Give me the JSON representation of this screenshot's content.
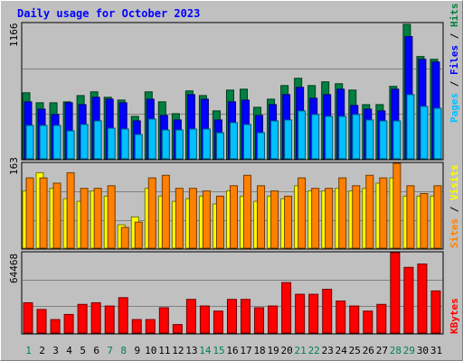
{
  "chart_data": [
    {
      "type": "bar",
      "title": "Daily usage for October 2023",
      "categories": [
        "1",
        "2",
        "3",
        "4",
        "5",
        "6",
        "7",
        "8",
        "9",
        "10",
        "11",
        "12",
        "13",
        "14",
        "15",
        "16",
        "17",
        "18",
        "19",
        "20",
        "21",
        "22",
        "23",
        "24",
        "25",
        "26",
        "27",
        "28",
        "29",
        "30",
        "31"
      ],
      "weekend_days": [
        "1",
        "7",
        "8",
        "14",
        "15",
        "21",
        "22",
        "28",
        "29"
      ],
      "ylim": [
        0,
        1166
      ],
      "max_label": "1166",
      "series": [
        {
          "name": "Pages",
          "color": "#00c0ff",
          "values": [
            288,
            288,
            288,
            241,
            296,
            327,
            264,
            257,
            210,
            343,
            249,
            249,
            257,
            257,
            225,
            312,
            296,
            225,
            327,
            335,
            413,
            382,
            366,
            366,
            382,
            335,
            327,
            327,
            553,
            452,
            436
          ]
        },
        {
          "name": "Files",
          "color": "#0000ff",
          "values": [
            491,
            428,
            382,
            483,
            467,
            530,
            514,
            483,
            327,
            514,
            374,
            335,
            553,
            514,
            335,
            491,
            506,
            374,
            467,
            553,
            616,
            522,
            553,
            600,
            460,
            428,
            413,
            600,
            1053,
            857,
            834
          ]
        },
        {
          "name": "Hits",
          "color": "#008040",
          "values": [
            569,
            483,
            483,
            491,
            545,
            577,
            530,
            506,
            366,
            577,
            491,
            389,
            585,
            545,
            413,
            592,
            600,
            444,
            514,
            631,
            694,
            631,
            663,
            647,
            592,
            467,
            467,
            624,
            1158,
            881,
            857
          ]
        }
      ]
    },
    {
      "type": "bar",
      "ylim": [
        0,
        163
      ],
      "max_label": "163",
      "series": [
        {
          "name": "Visits",
          "color": "#ffff00",
          "values": [
            110,
            145,
            115,
            95,
            90,
            110,
            100,
            45,
            60,
            115,
            100,
            90,
            95,
            100,
            85,
            110,
            100,
            90,
            100,
            95,
            120,
            110,
            110,
            115,
            110,
            115,
            125,
            135,
            100,
            100,
            100
          ]
        },
        {
          "name": "Sites",
          "color": "#ff8000",
          "values": [
            135,
            135,
            125,
            145,
            115,
            115,
            120,
            40,
            50,
            135,
            140,
            115,
            115,
            110,
            100,
            120,
            140,
            120,
            110,
            100,
            135,
            115,
            115,
            135,
            120,
            140,
            135,
            163,
            120,
            105,
            120
          ]
        }
      ]
    },
    {
      "type": "bar",
      "ylim": [
        0,
        64468
      ],
      "max_label": "64468",
      "series": [
        {
          "name": "KBytes",
          "color": "#ff0000",
          "values": [
            24300,
            18900,
            10800,
            14900,
            23000,
            24300,
            21700,
            28400,
            10800,
            10800,
            20300,
            6800,
            27000,
            21700,
            17600,
            27000,
            27000,
            20300,
            21700,
            40500,
            31100,
            31100,
            35100,
            25700,
            21700,
            17600,
            23000,
            64468,
            52700,
            55400,
            33800
          ]
        }
      ]
    }
  ]
}
